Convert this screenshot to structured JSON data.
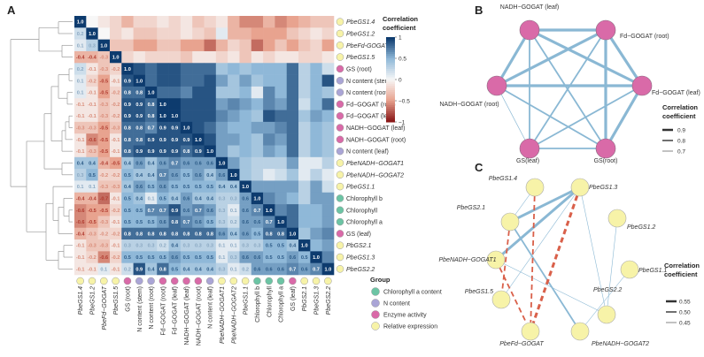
{
  "panels": {
    "a": "A",
    "b": "B",
    "c": "C"
  },
  "colors": {
    "pos": "#1f4e79",
    "neg": "#8b1a1a",
    "chl": "#6cc4a4",
    "nc": "#aaa5d6",
    "enz": "#d96aa8",
    "expr": "#f7f3a8",
    "edge_pos": "#8ab8d4",
    "edge_neg": "#d9604a"
  },
  "chart_data": [
    {
      "type": "heatmap",
      "panel": "A",
      "row_labels": [
        {
          "text": "PbeGS1.4",
          "italic": true,
          "group": "expr"
        },
        {
          "text": "PbeGS1.2",
          "italic": true,
          "group": "expr"
        },
        {
          "text": "PbeFd-GOGAT",
          "italic": true,
          "group": "expr"
        },
        {
          "text": "PbeGS1.5",
          "italic": true,
          "group": "expr"
        },
        {
          "text": "GS (root)",
          "italic": false,
          "group": "enz"
        },
        {
          "text": "N content (stem)",
          "italic": false,
          "group": "nc"
        },
        {
          "text": "N content (root)",
          "italic": false,
          "group": "nc"
        },
        {
          "text": "Fd−GOGAT (root)",
          "italic": false,
          "group": "enz"
        },
        {
          "text": "Fd−GOGAT (leaf)",
          "italic": false,
          "group": "enz"
        },
        {
          "text": "NADH−GOGAT (leaf)",
          "italic": false,
          "group": "enz"
        },
        {
          "text": "NADH−GOGAT (root)",
          "italic": false,
          "group": "enz"
        },
        {
          "text": "N content (leaf)",
          "italic": false,
          "group": "nc"
        },
        {
          "text": "PbeNADH−GOGAT1",
          "italic": true,
          "group": "expr"
        },
        {
          "text": "PbeNADH−GOGAT2",
          "italic": true,
          "group": "expr"
        },
        {
          "text": "PbeGS1.1",
          "italic": true,
          "group": "expr"
        },
        {
          "text": "Chlorophyll b",
          "italic": false,
          "group": "chl"
        },
        {
          "text": "Chlorophyll",
          "italic": false,
          "group": "chl"
        },
        {
          "text": "Chlorophyll a",
          "italic": false,
          "group": "chl"
        },
        {
          "text": "GS (leaf)",
          "italic": false,
          "group": "enz"
        },
        {
          "text": "PbGS2.1",
          "italic": true,
          "group": "expr"
        },
        {
          "text": "PbeGS1.3",
          "italic": true,
          "group": "expr"
        },
        {
          "text": "PbeGS2.2",
          "italic": true,
          "group": "expr"
        }
      ],
      "col_labels": [
        {
          "text": "PbeGS1.4",
          "italic": true,
          "group": "expr"
        },
        {
          "text": "PbeGS1.2",
          "italic": true,
          "group": "expr"
        },
        {
          "text": "PbeFd−GOGAT",
          "italic": true,
          "group": "expr"
        },
        {
          "text": "PbeGS1.5",
          "italic": true,
          "group": "expr"
        },
        {
          "text": "GS (root)",
          "italic": false,
          "group": "enz"
        },
        {
          "text": "N content (stem)",
          "italic": false,
          "group": "nc"
        },
        {
          "text": "N content (root)",
          "italic": false,
          "group": "nc"
        },
        {
          "text": "Fd−GOGAT (root)",
          "italic": false,
          "group": "enz"
        },
        {
          "text": "Fd−GOGAT (leaf)",
          "italic": false,
          "group": "enz"
        },
        {
          "text": "NADH−GOGAT (leaf)",
          "italic": false,
          "group": "enz"
        },
        {
          "text": "NADH−GOGAT (root)",
          "italic": false,
          "group": "enz"
        },
        {
          "text": "N content (leaf)",
          "italic": false,
          "group": "nc"
        },
        {
          "text": "PbeNADH−GOGAT1",
          "italic": true,
          "group": "expr"
        },
        {
          "text": "PbeNADH−GOGAT2",
          "italic": true,
          "group": "expr"
        },
        {
          "text": "PbeGS1.1",
          "italic": true,
          "group": "expr"
        },
        {
          "text": "Chlorophyll b",
          "italic": false,
          "group": "chl"
        },
        {
          "text": "Chlorophyll",
          "italic": false,
          "group": "chl"
        },
        {
          "text": "Chlorophyll a",
          "italic": false,
          "group": "chl"
        },
        {
          "text": "GS (leaf)",
          "italic": false,
          "group": "enz"
        },
        {
          "text": "PbGS2.1",
          "italic": true,
          "group": "expr"
        },
        {
          "text": "PbeGS1.3",
          "italic": true,
          "group": "expr"
        },
        {
          "text": "PbeGS2.2",
          "italic": true,
          "group": "expr"
        }
      ],
      "lower_values": [
        [
          1.0
        ],
        [
          0.2,
          1.0
        ],
        [
          0.1,
          0.3,
          1.0
        ],
        [
          -0.4,
          -0.4,
          -0.3,
          1.0
        ],
        [
          0.2,
          -0.1,
          -0.3,
          -0.2,
          1.0
        ],
        [
          0.1,
          -0.2,
          -0.5,
          -0.1,
          0.9,
          1.0
        ],
        [
          0.1,
          -0.1,
          -0.5,
          -0.2,
          0.8,
          0.8,
          1.0
        ],
        [
          -0.1,
          -0.1,
          -0.3,
          -0.2,
          0.9,
          0.9,
          0.8,
          1.0
        ],
        [
          -0.1,
          -0.1,
          -0.3,
          -0.2,
          0.9,
          0.9,
          0.8,
          1.0,
          1.0
        ],
        [
          -0.3,
          -0.3,
          -0.5,
          -0.3,
          0.8,
          0.8,
          0.7,
          0.9,
          0.9,
          1.0
        ],
        [
          -0.1,
          -0.6,
          -0.5,
          -0.1,
          0.8,
          0.8,
          0.9,
          0.9,
          0.9,
          0.9,
          1.0
        ],
        [
          -0.1,
          -0.3,
          -0.5,
          -0.1,
          0.8,
          0.9,
          0.9,
          0.9,
          0.9,
          0.8,
          0.9,
          1.0
        ],
        [
          0.4,
          0.4,
          -0.4,
          -0.5,
          0.4,
          0.6,
          0.4,
          0.6,
          0.7,
          0.6,
          0.6,
          0.6,
          1.0
        ],
        [
          0.3,
          0.5,
          -0.2,
          -0.2,
          0.5,
          0.4,
          0.4,
          0.7,
          0.6,
          0.5,
          0.6,
          0.4,
          0.6,
          1.0
        ],
        [
          0.1,
          0.1,
          -0.3,
          -0.3,
          0.4,
          0.6,
          0.5,
          0.6,
          0.5,
          0.5,
          0.5,
          0.5,
          0.4,
          0.4,
          1.0
        ],
        [
          -0.4,
          -0.4,
          -0.7,
          -0.1,
          0.5,
          0.4,
          0.1,
          0.5,
          0.4,
          0.6,
          0.4,
          0.4,
          0.3,
          0.3,
          0.6,
          1.0
        ],
        [
          -0.6,
          -0.5,
          -0.5,
          -0.2,
          0.5,
          0.5,
          0.7,
          0.7,
          0.9,
          0.6,
          0.7,
          0.6,
          0.3,
          0.1,
          0.6,
          0.7,
          1.0
        ],
        [
          -0.6,
          -0.5,
          -0.3,
          -0.1,
          0.5,
          0.5,
          0.5,
          0.6,
          0.8,
          0.7,
          0.6,
          0.5,
          0.3,
          0.2,
          0.6,
          0.6,
          0.7,
          1.0
        ],
        [
          -0.4,
          -0.3,
          -0.2,
          -0.2,
          0.8,
          0.8,
          0.8,
          0.8,
          0.8,
          0.8,
          0.8,
          0.8,
          0.6,
          0.4,
          0.6,
          0.5,
          0.8,
          0.8,
          1.0
        ],
        [
          -0.1,
          -0.3,
          -0.3,
          -0.1,
          0.3,
          0.3,
          0.3,
          0.2,
          0.4,
          0.3,
          0.3,
          0.3,
          0.1,
          0.1,
          0.3,
          0.3,
          0.5,
          0.5,
          0.4,
          1.0
        ],
        [
          -0.1,
          -0.2,
          -0.6,
          -0.2,
          0.5,
          0.5,
          0.5,
          0.5,
          0.6,
          0.5,
          0.5,
          0.5,
          0.1,
          0.3,
          0.6,
          0.6,
          0.5,
          0.5,
          0.6,
          0.5,
          1.0
        ],
        [
          -0.1,
          -0.1,
          0.1,
          -0.1,
          0.2,
          0.9,
          0.4,
          0.8,
          0.5,
          0.4,
          0.4,
          0.4,
          0.3,
          0.1,
          0.2,
          0.6,
          0.6,
          0.6,
          0.7,
          0.6,
          0.7,
          1.0
        ]
      ],
      "upper_colors": [
        [
          0,
          -0.1,
          -0.2,
          -0.4,
          -0.2,
          -0.2,
          -0.1,
          -0.2,
          -0.1,
          -0.3,
          -0.2,
          -0.1,
          -0.4,
          -0.6,
          -0.6,
          -0.4,
          -0.6,
          -0.5,
          -0.4,
          -0.3,
          -0.3
        ],
        [
          0,
          -0.2,
          -0.1,
          -0.3,
          -0.3,
          -0.2,
          -0.2,
          -0.1,
          -0.2,
          -0.3,
          0.1,
          -0.4,
          -0.4,
          -0.5,
          -0.5,
          -0.5,
          -0.3,
          -0.2,
          -0.1,
          -0.2
        ],
        [
          -0.3,
          -0.3,
          -0.5,
          -0.5,
          -0.3,
          -0.3,
          -0.5,
          -0.5,
          -0.7,
          -0.4,
          -0.2,
          -0.3,
          -0.7,
          -0.5,
          -0.3,
          -0.5,
          -0.3,
          -0.2,
          -0.5
        ],
        [
          -0.2,
          -0.1,
          -0.2,
          -0.2,
          -0.2,
          -0.3,
          -0.1,
          -0.1,
          -0.2,
          -0.1,
          -0.3,
          -0.1,
          -0.2,
          -0.1,
          -0.1,
          -0.2,
          -0.2,
          -0.1
        ]
      ],
      "colorbar": {
        "title": "Correlation coefficient",
        "ticks": [
          "1",
          "0.5",
          "0",
          "−0.5",
          "−1"
        ],
        "range": [
          -1,
          1
        ]
      },
      "legend": {
        "title": "Group",
        "items": [
          {
            "label": "Chlorophyll a content",
            "color_key": "chl"
          },
          {
            "label": "N content",
            "color_key": "nc"
          },
          {
            "label": "Enzyme activity",
            "color_key": "enz"
          },
          {
            "label": "Relative expression",
            "color_key": "expr"
          }
        ]
      }
    },
    {
      "type": "network",
      "panel": "B",
      "nodes": [
        {
          "label": "NADH−GOGAT (leaf)",
          "group": "enz"
        },
        {
          "label": "Fd−GOGAT (root)",
          "group": "enz"
        },
        {
          "label": "Fd−GOGAT (leaf)",
          "group": "enz"
        },
        {
          "label": "GS(root)",
          "group": "enz"
        },
        {
          "label": "GS(leaf)",
          "group": "enz"
        },
        {
          "label": "NADH−GOGAT (root)",
          "group": "enz"
        }
      ],
      "edges": [
        {
          "a": 0,
          "b": 1,
          "r": 0.9
        },
        {
          "a": 0,
          "b": 2,
          "r": 0.9
        },
        {
          "a": 0,
          "b": 3,
          "r": 0.8
        },
        {
          "a": 0,
          "b": 4,
          "r": 0.8
        },
        {
          "a": 0,
          "b": 5,
          "r": 0.9
        },
        {
          "a": 1,
          "b": 2,
          "r": 0.9
        },
        {
          "a": 1,
          "b": 3,
          "r": 0.9
        },
        {
          "a": 1,
          "b": 4,
          "r": 0.8
        },
        {
          "a": 1,
          "b": 5,
          "r": 0.9
        },
        {
          "a": 2,
          "b": 3,
          "r": 0.9
        },
        {
          "a": 2,
          "b": 4,
          "r": 0.8
        },
        {
          "a": 2,
          "b": 5,
          "r": 0.9
        },
        {
          "a": 3,
          "b": 4,
          "r": 0.8
        },
        {
          "a": 3,
          "b": 5,
          "r": 0.8
        },
        {
          "a": 4,
          "b": 5,
          "r": 0.7
        }
      ],
      "legend": {
        "title": "Correlation coefficient",
        "items": [
          "0.9",
          "0.8",
          "0.7"
        ]
      }
    },
    {
      "type": "network",
      "panel": "C",
      "nodes": [
        {
          "label": "PbeGS1.4",
          "group": "expr"
        },
        {
          "label": "PbeGS1.3",
          "group": "expr"
        },
        {
          "label": "PbeGS1.2",
          "group": "expr"
        },
        {
          "label": "PbeGS1.1",
          "group": "expr"
        },
        {
          "label": "PbeGS2.2",
          "group": "expr"
        },
        {
          "label": "PbeNADH−GOGAT2",
          "group": "expr"
        },
        {
          "label": "PbeFd−GOGAT",
          "group": "expr"
        },
        {
          "label": "PbeGS1.5",
          "group": "expr"
        },
        {
          "label": "PbeNADH−GOGAT1",
          "group": "expr"
        },
        {
          "label": "PbeGS2.1",
          "group": "expr"
        }
      ],
      "edges": [
        {
          "a": 9,
          "b": 1,
          "r": 0.55
        },
        {
          "a": 9,
          "b": 5,
          "r": 0.5
        },
        {
          "a": 8,
          "b": 1,
          "r": 0.55
        },
        {
          "a": 8,
          "b": 4,
          "r": 0.45
        },
        {
          "a": 7,
          "b": 1,
          "r": 0.45
        },
        {
          "a": 1,
          "b": 4,
          "r": 0.45
        },
        {
          "a": 2,
          "b": 4,
          "r": 0.45
        },
        {
          "a": 0,
          "b": 9,
          "r": 0.45
        },
        {
          "a": 5,
          "b": 3,
          "r": 0.45
        },
        {
          "a": 1,
          "b": 6,
          "r": -0.55
        },
        {
          "a": 0,
          "b": 6,
          "r": -0.5
        },
        {
          "a": 8,
          "b": 6,
          "r": -0.5
        },
        {
          "a": 9,
          "b": 7,
          "r": -0.5
        }
      ],
      "legend": {
        "title": "Correlation coefficient",
        "items": [
          "0.55",
          "0.50",
          "0.45"
        ]
      }
    }
  ]
}
